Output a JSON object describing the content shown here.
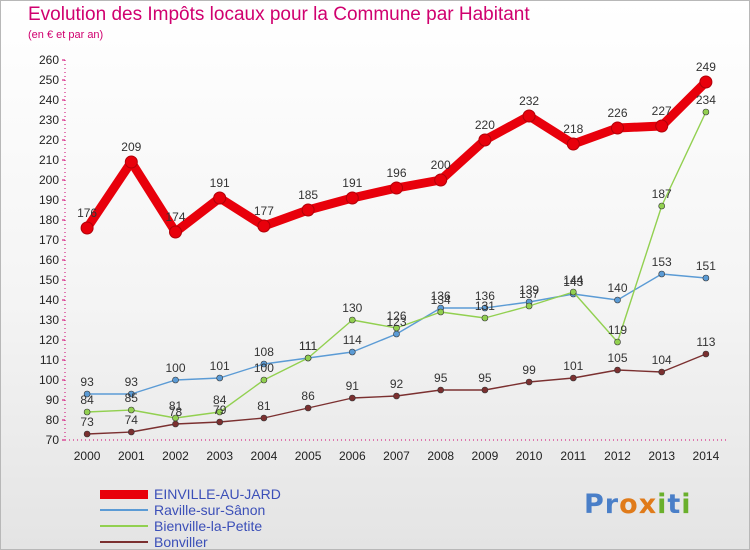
{
  "header": {
    "title": "Evolution des Impôts locaux pour la Commune par Habitant",
    "subtitle": "(en € et par an)"
  },
  "brand": {
    "letters": [
      "P",
      "r",
      "o",
      "x",
      "i",
      "t",
      "i"
    ],
    "colors": [
      "#4a7fc8",
      "#4a7fc8",
      "#e07b1a",
      "#e07b1a",
      "#6ab02c",
      "#4a7fc8",
      "#6ab02c"
    ]
  },
  "chart_data": {
    "type": "line",
    "title": "Evolution des Impôts locaux pour la Commune par Habitant",
    "subtitle": "(en € et par an)",
    "xlabel": "",
    "ylabel": "",
    "x": [
      "2000",
      "2001",
      "2002",
      "2003",
      "2004",
      "2005",
      "2006",
      "2007",
      "2008",
      "2009",
      "2010",
      "2011",
      "2012",
      "2013",
      "2014"
    ],
    "ylim": [
      70,
      260
    ],
    "yticks": [
      70,
      80,
      90,
      100,
      110,
      120,
      130,
      140,
      150,
      160,
      170,
      180,
      190,
      200,
      210,
      220,
      230,
      240,
      250,
      260
    ],
    "grid": false,
    "legend_position": "bottom-left",
    "series": [
      {
        "name": "EINVILLE-AU-JARD",
        "color": "#e8000b",
        "emphasis": true,
        "values": [
          176,
          209,
          174,
          191,
          177,
          185,
          191,
          196,
          200,
          220,
          232,
          218,
          226,
          227,
          249
        ]
      },
      {
        "name": "Raville-sur-Sânon",
        "color": "#5b9bd5",
        "emphasis": false,
        "values": [
          93,
          93,
          100,
          101,
          108,
          111,
          114,
          123,
          136,
          136,
          139,
          143,
          140,
          153,
          151
        ]
      },
      {
        "name": "Bienville-la-Petite",
        "color": "#92d050",
        "emphasis": false,
        "values": [
          84,
          85,
          81,
          84,
          100,
          111,
          130,
          126,
          134,
          131,
          137,
          144,
          119,
          187,
          234
        ]
      },
      {
        "name": "Bonviller",
        "color": "#7b3030",
        "emphasis": false,
        "values": [
          73,
          74,
          78,
          79,
          81,
          86,
          91,
          92,
          95,
          95,
          99,
          101,
          105,
          104,
          113
        ]
      }
    ]
  }
}
